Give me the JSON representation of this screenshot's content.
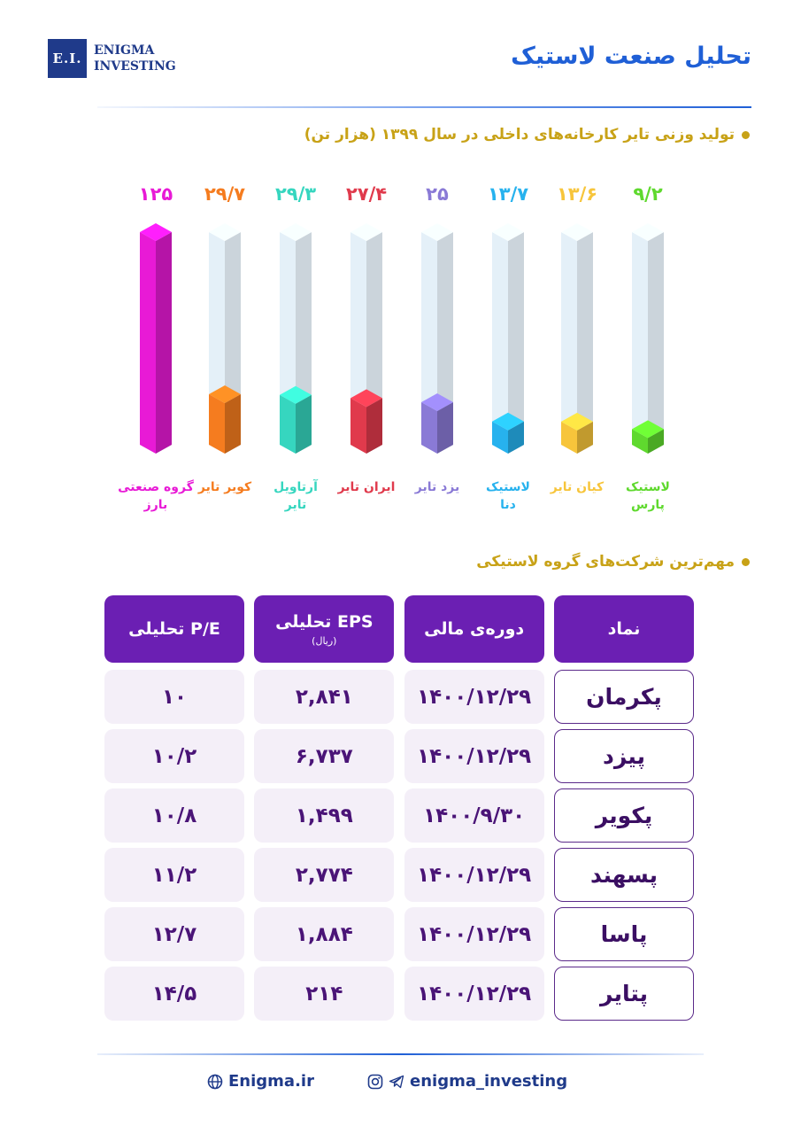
{
  "header": {
    "logo_mark": "E.I.",
    "logo_line1": "ENIGMA",
    "logo_line2": "INVESTING",
    "title": "تحلیل صنعت لاستیک"
  },
  "section1": {
    "title": "تولید وزنی تایر کارخانه‌های داخلی در سال ۱۳۹۹ (هزار تن)"
  },
  "chart_data": {
    "type": "bar",
    "title": "تولید وزنی تایر کارخانه‌های داخلی در سال ۱۳۹۹ (هزار تن)",
    "categories": [
      [
        "گروه صنعتی",
        "بارز"
      ],
      [
        "کویر تایر"
      ],
      [
        "آرتاویل",
        "تایر"
      ],
      [
        "ایران تایر"
      ],
      [
        "یزد تایر"
      ],
      [
        "لاستیک",
        "دنا"
      ],
      [
        "کیان تایر"
      ],
      [
        "لاستیک",
        "پارس"
      ]
    ],
    "values": [
      125,
      29.7,
      29.3,
      27.4,
      25,
      13.7,
      13.6,
      9.2
    ],
    "value_labels": [
      "۱۲۵",
      "۲۹/۷",
      "۲۹/۳",
      "۲۷/۴",
      "۲۵",
      "۱۳/۷",
      "۱۳/۶",
      "۹/۲"
    ],
    "colors": [
      "#e81ad6",
      "#f57c1f",
      "#36d6bf",
      "#e03a4c",
      "#8a7ad6",
      "#27b2ee",
      "#f7c53b",
      "#5fd92e"
    ],
    "ylim": [
      0,
      125
    ],
    "grid": false,
    "legend": "none"
  },
  "section2": {
    "title": "مهم‌ترین شرکت‌های گروه لاستیکی"
  },
  "table": {
    "headers": {
      "symbol": "نماد",
      "period": "دوره‌ی مالی",
      "eps": "EPS تحلیلی",
      "eps_unit": "(ریال)",
      "pe": "P/E تحلیلی"
    },
    "rows": [
      {
        "symbol": "پکرمان",
        "period": "۱۴۰۰/۱۲/۲۹",
        "eps": "۲,۸۴۱",
        "pe": "۱۰"
      },
      {
        "symbol": "پیزد",
        "period": "۱۴۰۰/۱۲/۲۹",
        "eps": "۶,۷۳۷",
        "pe": "۱۰/۲"
      },
      {
        "symbol": "پکویر",
        "period": "۱۴۰۰/۹/۳۰",
        "eps": "۱,۴۹۹",
        "pe": "۱۰/۸"
      },
      {
        "symbol": "پسهند",
        "period": "۱۴۰۰/۱۲/۲۹",
        "eps": "۲,۷۷۴",
        "pe": "۱۱/۲"
      },
      {
        "symbol": "پاسا",
        "period": "۱۴۰۰/۱۲/۲۹",
        "eps": "۱,۸۸۴",
        "pe": "۱۲/۷"
      },
      {
        "symbol": "پتایر",
        "period": "۱۴۰۰/۱۲/۲۹",
        "eps": "۲۱۴",
        "pe": "۱۴/۵"
      }
    ]
  },
  "footer": {
    "website": "Enigma.ir",
    "social": "enigma_investing",
    "icons": [
      "globe-icon",
      "instagram-icon",
      "telegram-icon"
    ]
  }
}
